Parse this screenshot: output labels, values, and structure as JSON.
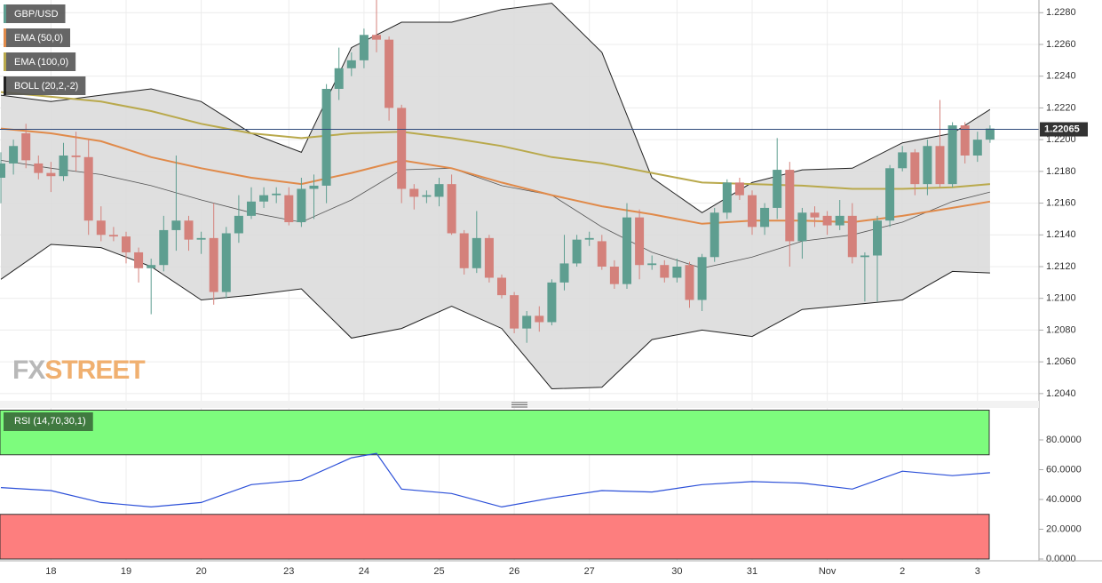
{
  "chart_data": [
    {
      "type": "candlestick",
      "categories": [
        null,
        null,
        null,
        null,
        "18",
        null,
        null,
        null,
        null,
        null,
        "19",
        null,
        null,
        null,
        null,
        null,
        "20",
        null,
        null,
        null,
        null,
        null,
        null,
        "23",
        null,
        null,
        null,
        null,
        null,
        "24",
        null,
        null,
        null,
        null,
        null,
        "25",
        null,
        null,
        null,
        null,
        null,
        "26",
        null,
        null,
        null,
        null,
        null,
        "27",
        null,
        null,
        null,
        null,
        null,
        null,
        "30",
        null,
        null,
        null,
        null,
        null,
        "31",
        null,
        null,
        null,
        null,
        null,
        "Nov",
        null,
        null,
        null,
        null,
        null,
        "2",
        null,
        null,
        null,
        null,
        null,
        "3",
        null
      ],
      "ylim": [
        1.2036,
        1.2288
      ],
      "yticks": [
        {
          "value": 1.204,
          "label": "1.2040"
        },
        {
          "value": 1.206,
          "label": "1.2060"
        },
        {
          "value": 1.208,
          "label": "1.2080"
        },
        {
          "value": 1.21,
          "label": "1.2100"
        },
        {
          "value": 1.212,
          "label": "1.2120"
        },
        {
          "value": 1.214,
          "label": "1.2140"
        },
        {
          "value": 1.216,
          "label": "1.2160"
        },
        {
          "value": 1.218,
          "label": "1.2180"
        },
        {
          "value": 1.22,
          "label": "1.2200"
        },
        {
          "value": 1.222,
          "label": "1.2220"
        },
        {
          "value": 1.224,
          "label": "1.2240"
        },
        {
          "value": 1.226,
          "label": "1.2260"
        },
        {
          "value": 1.228,
          "label": "1.2280"
        }
      ],
      "grid": true,
      "last_price": 1.22065,
      "watermark": [
        "FX",
        "STREET"
      ],
      "candles": {
        "name": "GBP/USD",
        "up_color": "#5e9e90",
        "down_color": "#d4817b",
        "open": [
          1.2176,
          1.2185,
          1.2204,
          1.2185,
          1.2179,
          1.2177,
          1.219,
          1.2189,
          1.2149,
          1.214,
          1.2139,
          1.2129,
          1.2119,
          1.2121,
          1.2143,
          1.2149,
          1.2137,
          1.2138,
          1.2104,
          1.2141,
          1.2152,
          1.2161,
          1.2165,
          1.2165,
          1.2148,
          1.2169,
          1.2171,
          1.2232,
          1.2245,
          1.225,
          1.2266,
          1.2263,
          1.222,
          1.2169,
          1.2164,
          1.2164,
          1.2172,
          1.2141,
          1.2119,
          1.2138,
          1.2113,
          1.2102,
          1.2081,
          1.2089,
          1.2085,
          1.211,
          1.2122,
          1.2137,
          1.2136,
          1.212,
          1.2109,
          1.2151,
          1.2121,
          1.2121,
          1.2113,
          1.2121,
          1.2099,
          1.2126,
          1.2154,
          1.2173,
          1.2165,
          1.2145,
          1.2157,
          1.2181,
          1.2136,
          1.2154,
          1.2152,
          1.2146,
          1.2152,
          1.2126,
          1.2127,
          1.2149,
          1.2182,
          1.2192,
          1.2172,
          1.2196,
          1.2172,
          1.2209,
          1.219,
          1.22
        ],
        "high": [
          1.2192,
          1.22,
          1.221,
          1.219,
          1.2186,
          1.2198,
          1.2205,
          1.22,
          1.2158,
          1.2145,
          1.2142,
          1.2132,
          1.2125,
          1.2152,
          1.219,
          1.2152,
          1.2142,
          1.216,
          1.2145,
          1.2165,
          1.217,
          1.217,
          1.217,
          1.217,
          1.2176,
          1.2178,
          1.2235,
          1.2258,
          1.2255,
          1.227,
          1.2288,
          1.2265,
          1.2222,
          1.2172,
          1.2168,
          1.2176,
          1.2178,
          1.2143,
          1.2155,
          1.214,
          1.2115,
          1.2104,
          1.2092,
          1.2095,
          1.2112,
          1.214,
          1.214,
          1.2142,
          1.214,
          1.2124,
          1.216,
          1.2156,
          1.2127,
          1.2124,
          1.2125,
          1.2123,
          1.2128,
          1.2157,
          1.2175,
          1.2176,
          1.2168,
          1.216,
          1.2201,
          1.2186,
          1.2157,
          1.2158,
          1.2155,
          1.2162,
          1.216,
          1.2129,
          1.2152,
          1.2184,
          1.2196,
          1.2194,
          1.22,
          1.2225,
          1.2211,
          1.2211,
          1.2205,
          1.2209
        ],
        "low": [
          1.216,
          1.2178,
          1.2182,
          1.2175,
          1.2167,
          1.2174,
          1.218,
          1.214,
          1.2136,
          1.2136,
          1.2122,
          1.211,
          1.209,
          1.2117,
          1.213,
          1.213,
          1.2128,
          1.2096,
          1.21,
          1.2135,
          1.215,
          1.2157,
          1.216,
          1.2146,
          1.2145,
          1.215,
          1.216,
          1.2225,
          1.224,
          1.2245,
          1.2255,
          1.2212,
          1.216,
          1.2156,
          1.216,
          1.2158,
          1.214,
          1.2115,
          1.2116,
          1.211,
          1.21,
          1.2078,
          1.2072,
          1.2079,
          1.2083,
          1.2105,
          1.212,
          1.2133,
          1.2118,
          1.2106,
          1.2106,
          1.2112,
          1.2118,
          1.211,
          1.211,
          1.2094,
          1.2092,
          1.2123,
          1.215,
          1.2162,
          1.214,
          1.214,
          1.215,
          1.212,
          1.2125,
          1.2145,
          1.214,
          1.2143,
          1.2122,
          1.2098,
          1.2098,
          1.2145,
          1.218,
          1.2165,
          1.2165,
          1.217,
          1.217,
          1.2185,
          1.2186,
          1.2198
        ],
        "close": [
          1.2185,
          1.2196,
          1.2187,
          1.2179,
          1.2177,
          1.219,
          1.2189,
          1.2149,
          1.214,
          1.2139,
          1.2129,
          1.2119,
          1.2121,
          1.2143,
          1.2149,
          1.2137,
          1.2138,
          1.2104,
          1.2141,
          1.2152,
          1.2161,
          1.2165,
          1.2166,
          1.2148,
          1.2169,
          1.2171,
          1.2232,
          1.2245,
          1.225,
          1.2266,
          1.2263,
          1.222,
          1.2169,
          1.2164,
          1.2165,
          1.2172,
          1.2141,
          1.2119,
          1.2138,
          1.2113,
          1.2102,
          1.2081,
          1.2089,
          1.2085,
          1.211,
          1.2122,
          1.2137,
          1.2138,
          1.212,
          1.2109,
          1.2151,
          1.2121,
          1.2122,
          1.2113,
          1.212,
          1.2099,
          1.2126,
          1.2154,
          1.2173,
          1.2165,
          1.2145,
          1.2157,
          1.2181,
          1.2136,
          1.2154,
          1.2151,
          1.2146,
          1.2152,
          1.2126,
          1.2127,
          1.2149,
          1.2182,
          1.2192,
          1.2172,
          1.2196,
          1.2172,
          1.2209,
          1.219,
          1.22,
          1.2207
        ]
      },
      "boll": {
        "name": "BOLL (20,2,-2)",
        "color": "#222222",
        "fill": "#dcdcdc",
        "x": [
          0,
          4,
          8,
          12,
          16,
          20,
          24,
          28,
          32,
          36,
          40,
          44,
          48,
          52,
          56,
          60,
          64,
          68,
          72,
          76,
          79
        ],
        "upper": [
          1.2228,
          1.2224,
          1.2228,
          1.2232,
          1.2224,
          1.2204,
          1.2192,
          1.2258,
          1.2274,
          1.2274,
          1.2282,
          1.2286,
          1.2255,
          1.2176,
          1.2154,
          1.2173,
          1.2181,
          1.2182,
          1.2198,
          1.2204,
          1.2219
        ],
        "middle": [
          1.2187,
          1.2182,
          1.2178,
          1.2171,
          1.2162,
          1.2154,
          1.2148,
          1.2162,
          1.2181,
          1.2182,
          1.2171,
          1.2165,
          1.2145,
          1.2129,
          1.2119,
          1.2126,
          1.2136,
          1.214,
          1.2148,
          1.2161,
          1.2167
        ],
        "lower": [
          1.2112,
          1.2134,
          1.2132,
          1.212,
          1.2099,
          1.2102,
          1.2106,
          1.2075,
          1.2081,
          1.2095,
          1.2081,
          1.2043,
          1.2044,
          1.2074,
          1.208,
          1.2076,
          1.2093,
          1.2096,
          1.2099,
          1.2117,
          1.2116
        ]
      },
      "series": [
        {
          "name": "EMA (50,0)",
          "color": "#e08a4a",
          "x": [
            0,
            4,
            8,
            12,
            16,
            20,
            24,
            28,
            32,
            36,
            40,
            44,
            48,
            52,
            56,
            60,
            64,
            68,
            72,
            76,
            79
          ],
          "values": [
            1.2207,
            1.2204,
            1.2199,
            1.2189,
            1.2182,
            1.2176,
            1.2172,
            1.2179,
            1.2187,
            1.2182,
            1.2173,
            1.2165,
            1.2158,
            1.2153,
            1.2147,
            1.2149,
            1.2149,
            1.2148,
            1.2152,
            1.2157,
            1.2161
          ]
        },
        {
          "name": "EMA (100,0)",
          "color": "#b9a94c",
          "x": [
            0,
            4,
            8,
            12,
            16,
            20,
            24,
            28,
            32,
            36,
            40,
            44,
            48,
            52,
            56,
            60,
            64,
            68,
            72,
            76,
            79
          ],
          "values": [
            1.223,
            1.2227,
            1.2224,
            1.2218,
            1.221,
            1.2204,
            1.2201,
            1.2204,
            1.2205,
            1.2201,
            1.2196,
            1.2189,
            1.2185,
            1.2179,
            1.2173,
            1.2172,
            1.2171,
            1.2169,
            1.2169,
            1.217,
            1.2172
          ]
        }
      ]
    },
    {
      "type": "line",
      "ylim": [
        0,
        100
      ],
      "yticks": [
        {
          "value": 0,
          "label": "0.0000"
        },
        {
          "value": 20,
          "label": "20.0000"
        },
        {
          "value": 40,
          "label": "40.0000"
        },
        {
          "value": 60,
          "label": "60.0000"
        },
        {
          "value": 80,
          "label": "80.0000"
        }
      ],
      "overbought": 70,
      "oversold": 30,
      "series": [
        {
          "name": "RSI (14,70,30,1)",
          "color": "#2b4fd8",
          "x": [
            0,
            4,
            8,
            12,
            16,
            20,
            24,
            28,
            30,
            32,
            36,
            40,
            44,
            48,
            52,
            56,
            60,
            64,
            68,
            72,
            76,
            79
          ],
          "values": [
            48,
            46,
            38,
            35,
            38,
            50,
            53,
            68,
            71,
            47,
            44,
            35,
            41,
            46,
            45,
            50,
            52,
            51,
            47,
            59,
            56,
            58
          ]
        }
      ]
    }
  ]
}
